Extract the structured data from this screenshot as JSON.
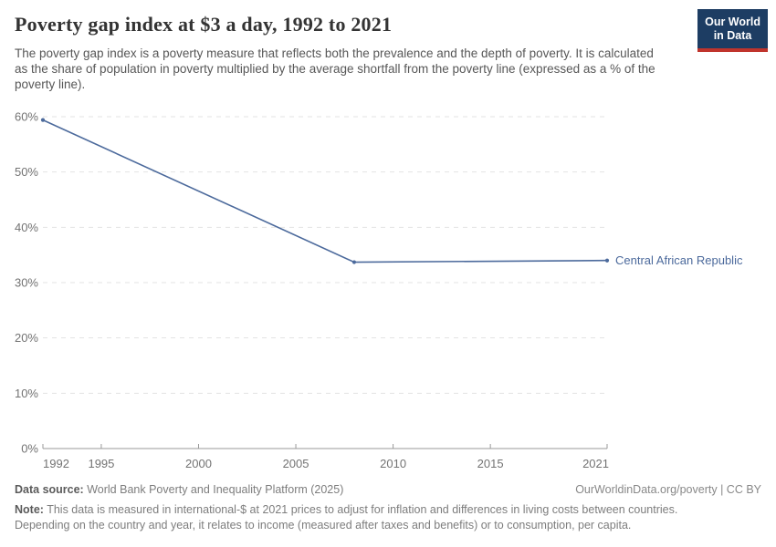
{
  "header": {
    "title": "Poverty gap index at $3 a day, 1992 to 2021",
    "subtitle": "The poverty gap index is a poverty measure that reflects both the prevalence and the depth of poverty. It is calculated as the share of population in poverty multiplied by the average shortfall from the poverty line (expressed as a % of the poverty line).",
    "logo": {
      "line1": "Our World",
      "line2": "in Data",
      "bg_color": "#1D3D63",
      "bar_color": "#C0342C"
    }
  },
  "chart_data": {
    "type": "line",
    "title": "Poverty gap index at $3 a day, 1992 to 2021",
    "xlabel": "",
    "ylabel": "",
    "xlim": [
      1992,
      2021
    ],
    "ylim": [
      0,
      60
    ],
    "x_ticks": [
      1992,
      1995,
      2000,
      2005,
      2010,
      2015,
      2021
    ],
    "y_ticks": [
      0,
      10,
      20,
      30,
      40,
      50,
      60
    ],
    "y_tick_format": "{v}%",
    "grid": "horizontal-dashed",
    "legend_position": "end-of-line-label",
    "series": [
      {
        "name": "Central African Republic",
        "color": "#4C6A9C",
        "points": [
          {
            "x": 1992,
            "y": 59.4
          },
          {
            "x": 2008,
            "y": 33.7
          },
          {
            "x": 2021,
            "y": 34.0
          }
        ]
      }
    ]
  },
  "footer": {
    "data_source_label": "Data source:",
    "data_source": "World Bank Poverty and Inequality Platform (2025)",
    "attribution": "OurWorldinData.org/poverty | CC BY",
    "note_label": "Note:",
    "note": "This data is measured in international-$ at 2021 prices to adjust for inflation and differences in living costs between countries. Depending on the country and year, it relates to income (measured after taxes and benefits) or to consumption, per capita."
  },
  "colors": {
    "line": "#4C6A9C",
    "gridline": "#e3e3e3",
    "axis": "#999999",
    "tick_label": "#737373",
    "logo_bg": "#1D3D63",
    "logo_bar": "#C0342C"
  }
}
